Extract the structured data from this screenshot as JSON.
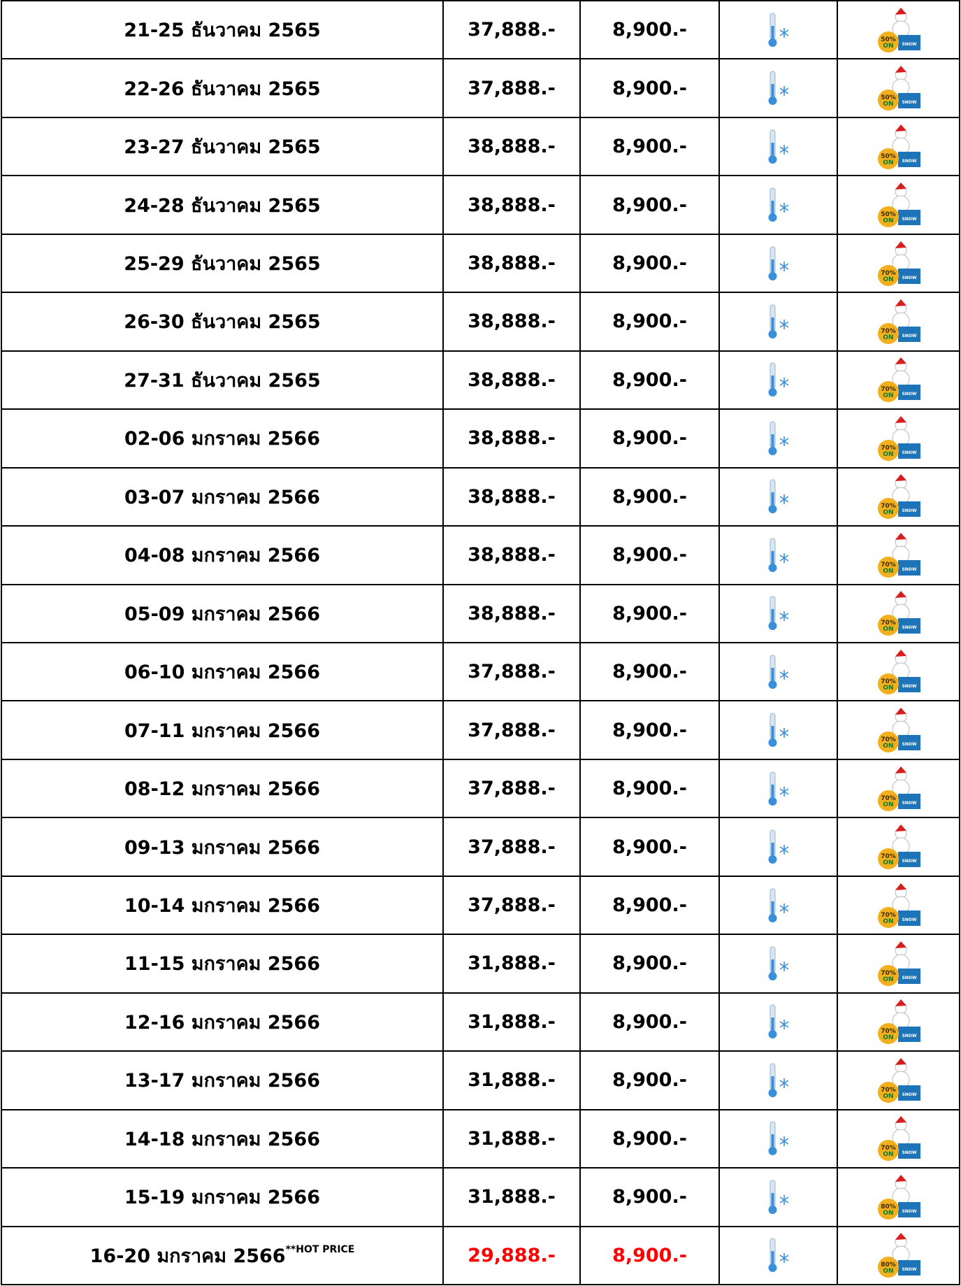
{
  "badge_on": "ON",
  "badge_snow": "SNOW",
  "table": {
    "rows": [
      {
        "date": "21-25 ธันวาคม 2565",
        "price": "37,888.-",
        "single": "8,900.-",
        "badge": "50%"
      },
      {
        "date": "22-26 ธันวาคม 2565",
        "price": "37,888.-",
        "single": "8,900.-",
        "badge": "50%"
      },
      {
        "date": "23-27 ธันวาคม 2565",
        "price": "38,888.-",
        "single": "8,900.-",
        "badge": "50%"
      },
      {
        "date": "24-28 ธันวาคม 2565",
        "price": "38,888.-",
        "single": "8,900.-",
        "badge": "50%"
      },
      {
        "date": "25-29 ธันวาคม 2565",
        "price": "38,888.-",
        "single": "8,900.-",
        "badge": "70%"
      },
      {
        "date": "26-30 ธันวาคม 2565",
        "price": "38,888.-",
        "single": "8,900.-",
        "badge": "70%"
      },
      {
        "date": "27-31 ธันวาคม 2565",
        "price": "38,888.-",
        "single": "8,900.-",
        "badge": "70%"
      },
      {
        "date": "02-06 มกราคม 2566",
        "price": "38,888.-",
        "single": "8,900.-",
        "badge": "70%"
      },
      {
        "date": "03-07 มกราคม 2566",
        "price": "38,888.-",
        "single": "8,900.-",
        "badge": "70%"
      },
      {
        "date": "04-08 มกราคม 2566",
        "price": "38,888.-",
        "single": "8,900.-",
        "badge": "70%"
      },
      {
        "date": "05-09 มกราคม 2566",
        "price": "38,888.-",
        "single": "8,900.-",
        "badge": "70%"
      },
      {
        "date": "06-10 มกราคม 2566",
        "price": "37,888.-",
        "single": "8,900.-",
        "badge": "70%"
      },
      {
        "date": "07-11 มกราคม 2566",
        "price": "37,888.-",
        "single": "8,900.-",
        "badge": "70%"
      },
      {
        "date": "08-12 มกราคม 2566",
        "price": "37,888.-",
        "single": "8,900.-",
        "badge": "70%"
      },
      {
        "date": "09-13 มกราคม 2566",
        "price": "37,888.-",
        "single": "8,900.-",
        "badge": "70%"
      },
      {
        "date": "10-14 มกราคม 2566",
        "price": "37,888.-",
        "single": "8,900.-",
        "badge": "70%"
      },
      {
        "date": "11-15 มกราคม 2566",
        "price": "31,888.-",
        "single": "8,900.-",
        "badge": "70%"
      },
      {
        "date": "12-16 มกราคม 2566",
        "price": "31,888.-",
        "single": "8,900.-",
        "badge": "70%"
      },
      {
        "date": "13-17 มกราคม 2566",
        "price": "31,888.-",
        "single": "8,900.-",
        "badge": "70%"
      },
      {
        "date": "14-18 มกราคม 2566",
        "price": "31,888.-",
        "single": "8,900.-",
        "badge": "70%"
      },
      {
        "date": "15-19 มกราคม 2566",
        "price": "31,888.-",
        "single": "8,900.-",
        "badge": "80%"
      },
      {
        "date": "16-20 มกราคม 2566",
        "note": "**HOT PRICE",
        "price": "29,888.-",
        "single": "8,900.-",
        "badge": "80%",
        "color": "#ff0000"
      }
    ]
  }
}
